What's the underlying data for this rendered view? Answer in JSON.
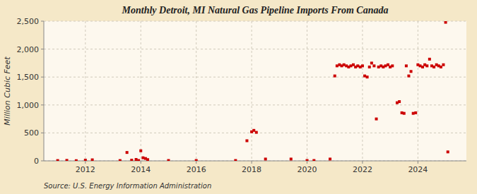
{
  "chart_data": {
    "type": "scatter",
    "title": "Monthly Detroit, MI Natural Gas Pipeline Imports From Canada",
    "y_label": "Million Cubic Feet",
    "source": "Source: U.S. Energy Information Administration",
    "color": "#cc0000",
    "marker": "square",
    "grid": true,
    "xlim": [
      2010.5,
      2025.75
    ],
    "xticks": [
      2012,
      2014,
      2016,
      2018,
      2020,
      2022,
      2024
    ],
    "ylim": [
      0,
      2500
    ],
    "yticks": [
      0,
      500,
      {
        "value": 1000,
        "label": "1,000"
      },
      {
        "value": 1500,
        "label": "1,500"
      },
      {
        "value": 2000,
        "label": "2,000"
      },
      {
        "value": 2500,
        "label": "2,500"
      }
    ],
    "x": [
      2011.0,
      2011.33,
      2011.67,
      2012.0,
      2012.25,
      2013.25,
      2013.5,
      2013.67,
      2013.83,
      2013.92,
      2014.0,
      2014.08,
      2014.17,
      2014.25,
      2015.0,
      2016.0,
      2017.42,
      2017.83,
      2018.0,
      2018.08,
      2018.17,
      2018.5,
      2019.42,
      2020.0,
      2020.25,
      2020.83,
      2021.0,
      2021.08,
      2021.17,
      2021.25,
      2021.33,
      2021.42,
      2021.5,
      2021.58,
      2021.67,
      2021.75,
      2021.83,
      2021.92,
      2022.0,
      2022.08,
      2022.17,
      2022.25,
      2022.33,
      2022.42,
      2022.5,
      2022.58,
      2022.67,
      2022.75,
      2022.83,
      2022.92,
      2023.0,
      2023.08,
      2023.25,
      2023.33,
      2023.42,
      2023.5,
      2023.58,
      2023.67,
      2023.75,
      2023.83,
      2023.92,
      2024.0,
      2024.08,
      2024.17,
      2024.25,
      2024.33,
      2024.42,
      2024.5,
      2024.58,
      2024.67,
      2024.75,
      2024.83,
      2024.92,
      2025.0,
      2025.08
    ],
    "values": [
      5,
      8,
      3,
      12,
      18,
      5,
      150,
      12,
      25,
      6,
      180,
      55,
      42,
      22,
      6,
      6,
      6,
      360,
      520,
      545,
      510,
      32,
      32,
      6,
      6,
      32,
      1520,
      1700,
      1720,
      1700,
      1720,
      1700,
      1680,
      1700,
      1720,
      1680,
      1700,
      1680,
      1700,
      1520,
      1500,
      1680,
      1750,
      1700,
      750,
      1680,
      1700,
      1680,
      1700,
      1720,
      1680,
      1700,
      1040,
      1060,
      860,
      850,
      1700,
      1520,
      1600,
      850,
      860,
      1720,
      1700,
      1680,
      1720,
      1700,
      1820,
      1700,
      1680,
      1720,
      1700,
      1680,
      1720,
      2480,
      160
    ]
  }
}
